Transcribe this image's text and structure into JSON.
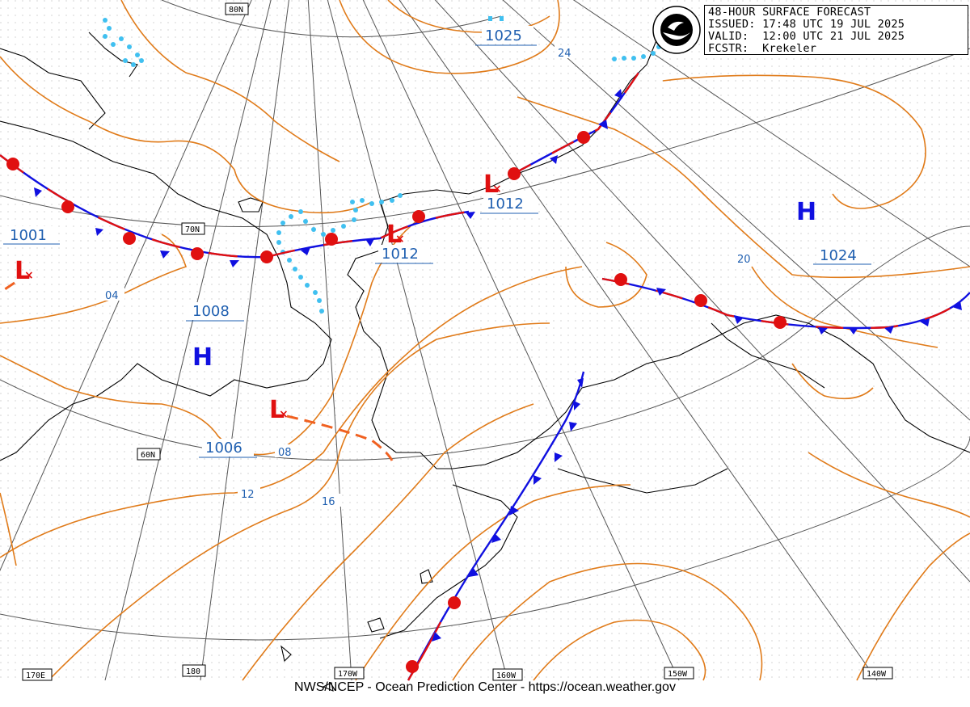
{
  "header": {
    "line1": "48-HOUR SURFACE FORECAST",
    "line2": "ISSUED: 17:48 UTC 19 JUL 2025",
    "line3": "VALID:  12:00 UTC 21 JUL 2025",
    "line4": "FCSTR:  Krekeler"
  },
  "footer": "NWS/NCEP - Ocean Prediction Center - https://ocean.weather.gov",
  "grid_labels": {
    "lat_80": "80N",
    "lat_70": "70N",
    "lat_60": "60N",
    "lon_170e": "170E",
    "lon_180": "180",
    "lon_170w": "170W",
    "lon_160w": "160W",
    "lon_150w": "150W",
    "lon_140w": "140W"
  },
  "pressure_labels": {
    "high_top": "1025",
    "low_west": "1001",
    "high_west": "1008",
    "low_south": "1006",
    "low_center": "1012",
    "low_northeast": "1012",
    "high_east": "1024"
  },
  "isobar_labels": {
    "i04": "04",
    "i08": "08",
    "i12": "12",
    "i16": "16",
    "i20": "20",
    "i24": "24"
  },
  "symbols": {
    "high": "H",
    "low": "L"
  },
  "colors": {
    "isobar": "#e07b1a",
    "cold_front": "#1010e0",
    "warm_front": "#e01010",
    "trough": "#f06020",
    "ice_edge": "#40c0f0",
    "label_blue": "#1f5fb0",
    "coast": "#000000",
    "grid": "#555555"
  }
}
